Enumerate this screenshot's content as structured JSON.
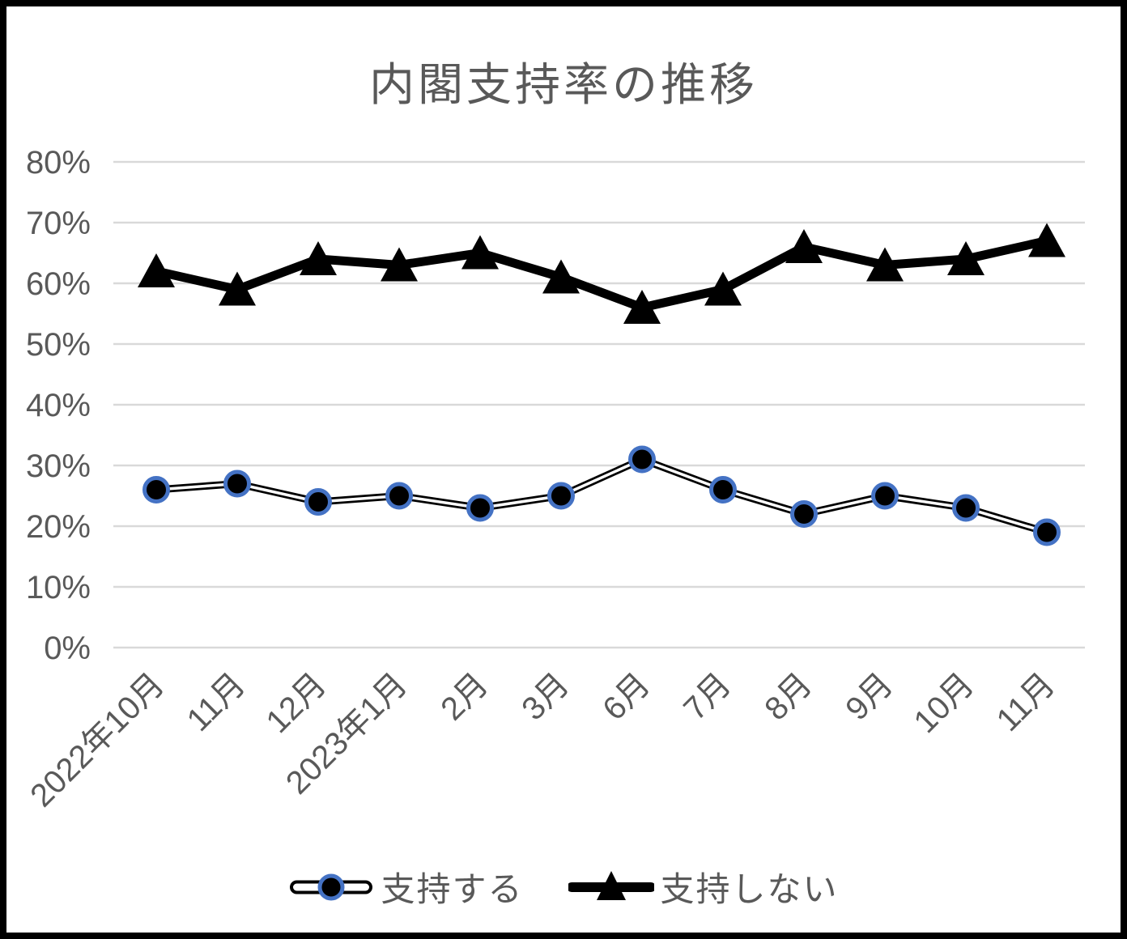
{
  "chart_data": {
    "type": "line",
    "title": "内閣支持率の推移",
    "categories": [
      "2022年10月",
      "11月",
      "12月",
      "2023年1月",
      "2月",
      "3月",
      "6月",
      "7月",
      "8月",
      "9月",
      "10月",
      "11月"
    ],
    "series": [
      {
        "name": "支持する",
        "values": [
          26,
          27,
          24,
          25,
          23,
          25,
          31,
          26,
          22,
          25,
          23,
          19
        ],
        "marker": "circle",
        "marker_fill": "#000000",
        "marker_border": "#4472C4",
        "line_style": "black-outline-white-core"
      },
      {
        "name": "支持しない",
        "values": [
          62,
          59,
          64,
          63,
          65,
          61,
          56,
          59,
          66,
          63,
          64,
          67
        ],
        "marker": "triangle",
        "marker_fill": "#000000",
        "line_style": "thick-solid-black"
      }
    ],
    "xlabel": "",
    "ylabel": "",
    "ylim": [
      0,
      80
    ],
    "y_tick_step": 10,
    "y_ticks": [
      "0%",
      "10%",
      "20%",
      "30%",
      "40%",
      "50%",
      "60%",
      "70%",
      "80%"
    ],
    "grid": true,
    "legend_position": "bottom",
    "colors": {
      "line": "#000000",
      "marker_border": "#4472C4",
      "gridline": "#D9D9D9",
      "axis_text": "#595959",
      "title_text": "#595959"
    }
  }
}
